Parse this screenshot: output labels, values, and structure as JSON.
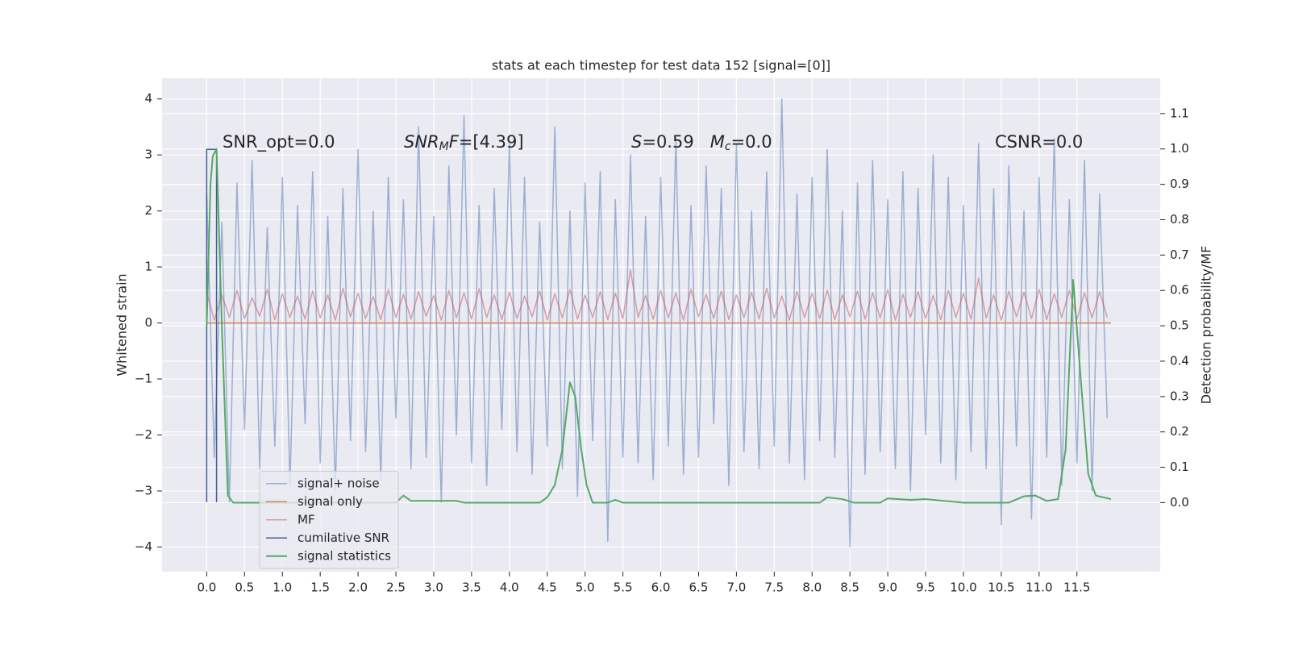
{
  "chart_data": {
    "type": "line",
    "title": "stats at each timestep for test data 152 [signal=[0]]",
    "ylabel": "Whitened strain",
    "y2label": "Detection probability/MF",
    "annotations": [
      {
        "parts": [
          "SNR_opt=0.0"
        ]
      },
      {
        "parts": [
          "SNR",
          "M",
          "F",
          "=[4.39]"
        ]
      },
      {
        "parts": [
          "S",
          "=0.59   ",
          "M",
          "c",
          "=0.0"
        ]
      },
      {
        "parts": [
          "CSNR=0.0"
        ]
      }
    ],
    "xlim": [
      -0.59,
      12.6
    ],
    "ylim": [
      -4.44,
      4.37
    ],
    "y2lim": [
      -0.195,
      1.2
    ],
    "grid": true,
    "legend_loc": "lower left",
    "xticks": [
      {
        "value": 0,
        "label": "0.0"
      },
      {
        "value": 0.5,
        "label": "0.5"
      },
      {
        "value": 1,
        "label": "1.0"
      },
      {
        "value": 1.5,
        "label": "1.5"
      },
      {
        "value": 2,
        "label": "2.0"
      },
      {
        "value": 2.5,
        "label": "2.5"
      },
      {
        "value": 3,
        "label": "3.0"
      },
      {
        "value": 3.5,
        "label": "3.5"
      },
      {
        "value": 4,
        "label": "4.0"
      },
      {
        "value": 4.5,
        "label": "4.5"
      },
      {
        "value": 5,
        "label": "5.0"
      },
      {
        "value": 5.5,
        "label": "5.5"
      },
      {
        "value": 6,
        "label": "6.0"
      },
      {
        "value": 6.5,
        "label": "6.5"
      },
      {
        "value": 7,
        "label": "7.0"
      },
      {
        "value": 7.5,
        "label": "7.5"
      },
      {
        "value": 8,
        "label": "8.0"
      },
      {
        "value": 8.5,
        "label": "8.5"
      },
      {
        "value": 9,
        "label": "9.0"
      },
      {
        "value": 9.5,
        "label": "9.5"
      },
      {
        "value": 10,
        "label": "10.0"
      },
      {
        "value": 10.5,
        "label": "10.5"
      },
      {
        "value": 11,
        "label": "11.0"
      },
      {
        "value": 11.5,
        "label": "11.5"
      }
    ],
    "yticks": [
      {
        "value": -4,
        "label": "−4"
      },
      {
        "value": -3,
        "label": "−3"
      },
      {
        "value": -2,
        "label": "−2"
      },
      {
        "value": -1,
        "label": "−1"
      },
      0,
      1,
      2,
      3,
      4
    ],
    "y2ticks": [
      {
        "value": 0,
        "label": "0.0"
      },
      0.1,
      0.2,
      0.3,
      0.4,
      0.5,
      0.6,
      0.7,
      0.8,
      0.9,
      {
        "value": 1,
        "label": "1.0"
      },
      1.1
    ],
    "x": [
      0,
      0.1,
      0.2,
      0.3,
      0.4,
      0.5,
      0.6,
      0.7,
      0.8,
      0.9,
      1,
      1.1,
      1.2,
      1.3,
      1.4,
      1.5,
      1.6,
      1.7,
      1.8,
      1.9,
      2,
      2.1,
      2.2,
      2.3,
      2.4,
      2.5,
      2.6,
      2.7,
      2.8,
      2.9,
      3,
      3.1,
      3.2,
      3.3,
      3.4,
      3.5,
      3.6,
      3.7,
      3.8,
      3.9,
      4,
      4.1,
      4.2,
      4.3,
      4.4,
      4.5,
      4.6,
      4.7,
      4.8,
      4.9,
      5,
      5.1,
      5.2,
      5.3,
      5.4,
      5.5,
      5.6,
      5.7,
      5.8,
      5.9,
      6,
      6.1,
      6.2,
      6.3,
      6.4,
      6.5,
      6.6,
      6.7,
      6.8,
      6.9,
      7,
      7.1,
      7.2,
      7.3,
      7.4,
      7.5,
      7.6,
      7.7,
      7.8,
      7.9,
      8,
      8.1,
      8.2,
      8.3,
      8.4,
      8.5,
      8.6,
      8.7,
      8.8,
      8.9,
      9,
      9.1,
      9.2,
      9.3,
      9.4,
      9.5,
      9.6,
      9.7,
      9.8,
      9.9,
      10,
      10.1,
      10.2,
      10.3,
      10.4,
      10.5,
      10.6,
      10.7,
      10.8,
      10.9,
      11,
      11.1,
      11.2,
      11.3,
      11.4,
      11.5,
      11.6,
      11.7,
      11.8,
      11.9
    ],
    "series": [
      {
        "name": "signal+ noise",
        "color": "#4c72b0",
        "values": [
          2.3,
          -2.4,
          1.8,
          -3.2,
          2.5,
          -1.9,
          2.9,
          -2.6,
          1.7,
          -2.2,
          2.6,
          -2.9,
          2.1,
          -1.8,
          2.7,
          -2.5,
          1.9,
          -3.0,
          2.4,
          -2.1,
          3.1,
          -2.3,
          2.0,
          -2.8,
          2.6,
          -1.7,
          2.2,
          -2.6,
          3.5,
          -2.4,
          1.9,
          -3.2,
          2.8,
          -2.0,
          3.7,
          -2.5,
          2.1,
          -2.9,
          2.4,
          -1.9,
          3.2,
          -2.3,
          2.6,
          -2.7,
          1.8,
          -2.2,
          3.5,
          -2.6,
          2.0,
          -3.1,
          2.5,
          -2.1,
          2.7,
          -3.9,
          2.2,
          -2.4,
          3.0,
          -2.5,
          1.9,
          -2.8,
          2.6,
          -2.2,
          3.3,
          -2.7,
          2.1,
          -2.4,
          2.8,
          -1.8,
          2.4,
          -2.9,
          3.2,
          -2.3,
          2.0,
          -2.6,
          2.7,
          -2.2,
          4.0,
          -2.5,
          2.3,
          -2.8,
          2.6,
          -2.1,
          3.1,
          -2.4,
          2.0,
          -4.0,
          2.5,
          -2.7,
          2.9,
          -2.3,
          2.2,
          -2.6,
          2.7,
          -3.0,
          2.4,
          -2.0,
          3.0,
          -2.5,
          2.6,
          -2.8,
          2.1,
          -2.3,
          3.2,
          -2.6,
          2.4,
          -3.6,
          2.8,
          -2.2,
          2.0,
          -3.5,
          2.6,
          -2.4,
          3.3,
          -2.9,
          2.2,
          -2.5,
          2.9,
          -3.0,
          2.3,
          -1.7
        ]
      },
      {
        "name": "signal only",
        "color": "#dd8452",
        "x": [
          0,
          11.95
        ],
        "values": [
          0,
          0
        ]
      },
      {
        "name": "MF",
        "color": "#c44e52",
        "values": [
          0.55,
          0.05,
          0.5,
          0.1,
          0.58,
          0.08,
          0.45,
          0.12,
          0.6,
          0.06,
          0.52,
          0.1,
          0.48,
          0.07,
          0.57,
          0.09,
          0.5,
          0.05,
          0.62,
          0.11,
          0.53,
          0.08,
          0.47,
          0.06,
          0.6,
          0.1,
          0.51,
          0.07,
          0.56,
          0.12,
          0.49,
          0.05,
          0.58,
          0.09,
          0.54,
          0.07,
          0.61,
          0.1,
          0.5,
          0.06,
          0.55,
          0.08,
          0.48,
          0.11,
          0.57,
          0.05,
          0.52,
          0.09,
          0.6,
          0.07,
          0.5,
          0.1,
          0.56,
          0.06,
          0.53,
          0.08,
          0.95,
          0.1,
          0.49,
          0.07,
          0.58,
          0.09,
          0.54,
          0.05,
          0.6,
          0.11,
          0.51,
          0.08,
          0.57,
          0.06,
          0.5,
          0.1,
          0.55,
          0.07,
          0.62,
          0.09,
          0.48,
          0.05,
          0.56,
          0.1,
          0.53,
          0.08,
          0.59,
          0.06,
          0.5,
          0.11,
          0.57,
          0.07,
          0.54,
          0.09,
          0.6,
          0.05,
          0.51,
          0.1,
          0.56,
          0.08,
          0.49,
          0.06,
          0.58,
          0.1,
          0.53,
          0.07,
          0.8,
          0.09,
          0.5,
          0.05,
          0.57,
          0.11,
          0.55,
          0.08,
          0.6,
          0.06,
          0.52,
          0.1,
          0.58,
          0.07,
          0.54,
          0.09,
          0.56,
          0.1
        ]
      },
      {
        "name": "cumilative SNR",
        "color": "#2f4f8a",
        "x": [
          0,
          0,
          0.13,
          0.13
        ],
        "values": [
          -3.2,
          3.1,
          3.1,
          -3.2
        ]
      },
      {
        "name": "signal statistics",
        "color": "#55a868",
        "axis": "y2",
        "x": [
          0,
          0.05,
          0.08,
          0.13,
          0.2,
          0.28,
          0.35,
          2.5,
          2.6,
          2.7,
          3.3,
          3.4,
          4.4,
          4.5,
          4.6,
          4.7,
          4.8,
          4.87,
          4.95,
          5.02,
          5.1,
          5.3,
          5.4,
          5.5,
          8.1,
          8.2,
          8.4,
          8.55,
          8.9,
          9.0,
          9.3,
          9.5,
          10.0,
          10.6,
          10.8,
          10.95,
          11.1,
          11.25,
          11.35,
          11.45,
          11.55,
          11.65,
          11.75,
          11.95
        ],
        "values": [
          0.5,
          0.9,
          0.98,
          1.0,
          0.5,
          0.02,
          0.0,
          0.0,
          0.02,
          0.005,
          0.005,
          0.0,
          0.0,
          0.015,
          0.05,
          0.15,
          0.34,
          0.3,
          0.15,
          0.05,
          0.0,
          0.0,
          0.008,
          0.0,
          0.0,
          0.015,
          0.01,
          0.0,
          0.0,
          0.012,
          0.008,
          0.01,
          0.0,
          0.0,
          0.018,
          0.02,
          0.005,
          0.01,
          0.15,
          0.63,
          0.35,
          0.08,
          0.02,
          0.01
        ]
      }
    ]
  }
}
